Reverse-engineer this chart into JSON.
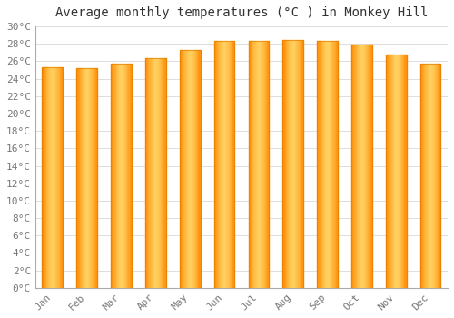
{
  "title": "Average monthly temperatures (°C ) in Monkey Hill",
  "months": [
    "Jan",
    "Feb",
    "Mar",
    "Apr",
    "May",
    "Jun",
    "Jul",
    "Aug",
    "Sep",
    "Oct",
    "Nov",
    "Dec"
  ],
  "values": [
    25.3,
    25.2,
    25.7,
    26.4,
    27.3,
    28.3,
    28.3,
    28.4,
    28.3,
    27.9,
    26.8,
    25.7
  ],
  "bar_color_main": "#FFA500",
  "bar_color_light": "#FFD060",
  "bar_color_edge": "#E08000",
  "background_color": "#FFFFFF",
  "grid_color": "#DDDDDD",
  "ylim": [
    0,
    30
  ],
  "ytick_step": 2,
  "title_fontsize": 10,
  "tick_fontsize": 8,
  "font_family": "monospace",
  "bar_width": 0.6
}
